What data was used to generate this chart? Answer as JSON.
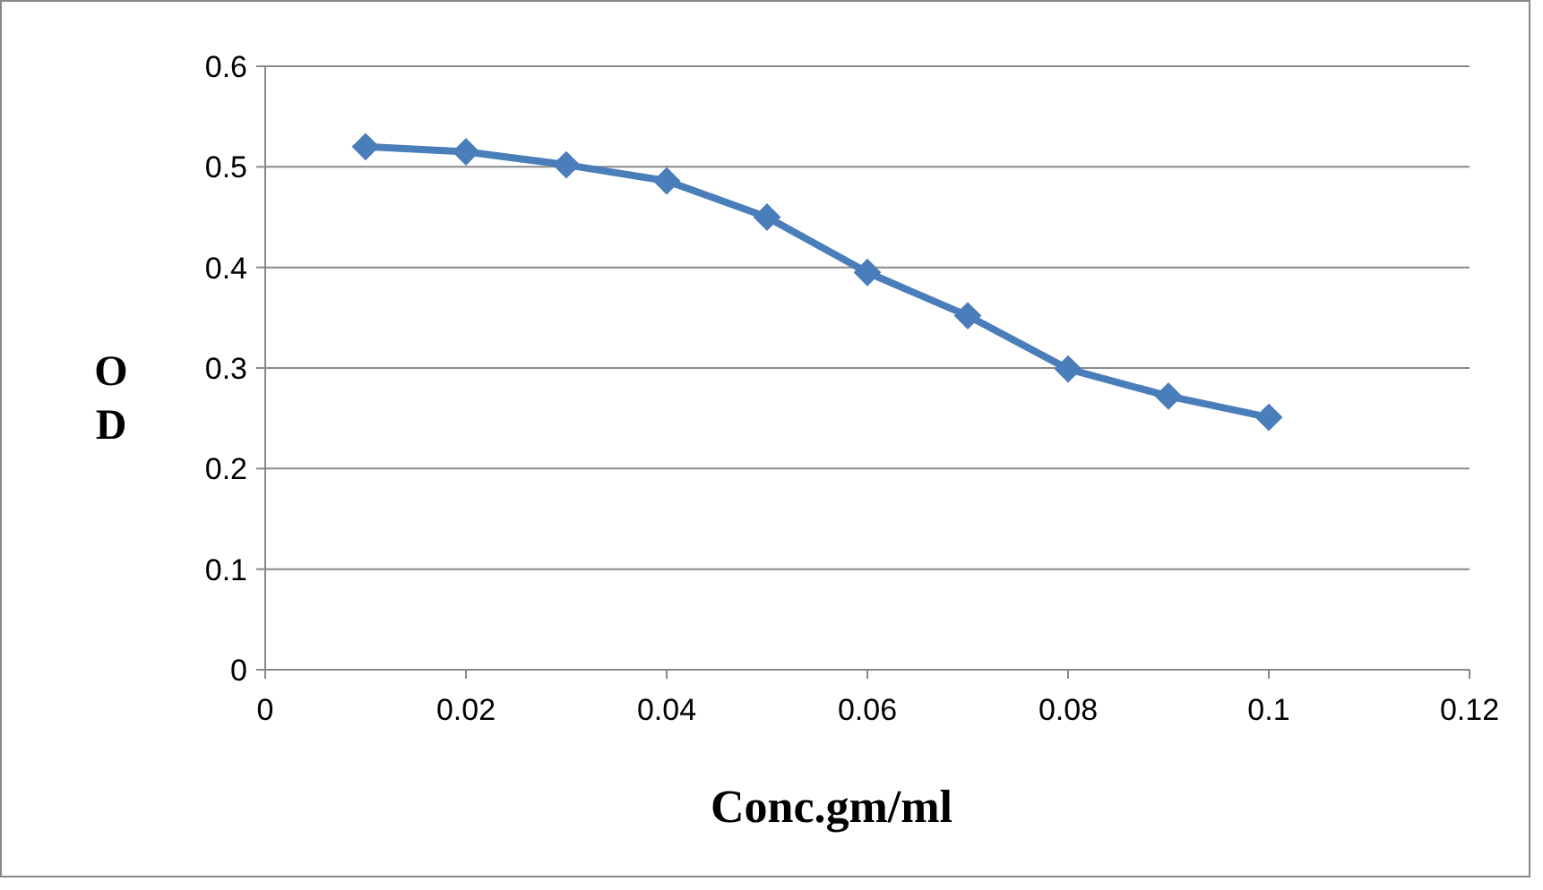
{
  "chart_data": {
    "type": "line",
    "xlabel": "Conc.gm/ml",
    "ylabel": "OD",
    "x": [
      0.01,
      0.02,
      0.03,
      0.04,
      0.05,
      0.06,
      0.07,
      0.08,
      0.09,
      0.1
    ],
    "series": [
      {
        "color": "#4a7ebb",
        "values": [
          0.52,
          0.515,
          0.502,
          0.486,
          0.45,
          0.395,
          0.352,
          0.299,
          0.272,
          0.251
        ]
      }
    ],
    "xlim": [
      0,
      0.12
    ],
    "xticks": [
      0,
      0.02,
      0.04,
      0.06,
      0.08,
      0.1,
      0.12
    ],
    "ylim": [
      0,
      0.6
    ],
    "yticks": [
      0,
      0.1,
      0.2,
      0.3,
      0.4,
      0.5,
      0.6
    ],
    "grid": "y",
    "marker": "diamond",
    "line_style": "solid"
  }
}
